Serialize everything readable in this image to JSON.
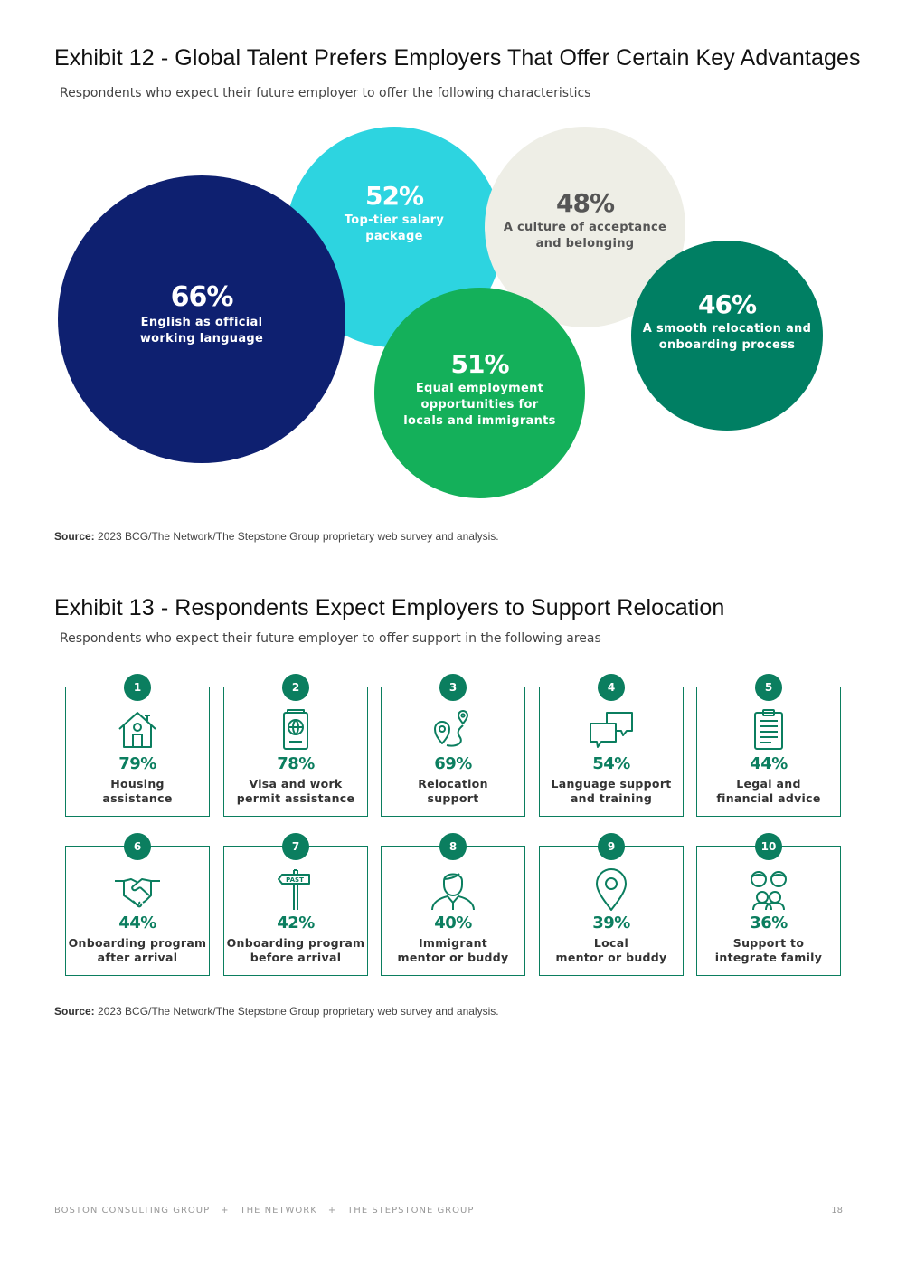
{
  "exhibit12": {
    "title": "Exhibit 12 - Global Talent Prefers Employers That Offer Certain Key Advantages",
    "subtitle": "Respondents who expect their future employer to offer the following characteristics",
    "bubbles": [
      {
        "pct": "66%",
        "label": "English as official\nworking language",
        "value": 66,
        "color": "#0e2070"
      },
      {
        "pct": "52%",
        "label": "Top-tier salary\npackage",
        "value": 52,
        "color": "#2dd4e0"
      },
      {
        "pct": "48%",
        "label": "A culture of acceptance\nand belonging",
        "value": 48,
        "color": "#eeeee6"
      },
      {
        "pct": "51%",
        "label": "Equal employment\nopportunities for\nlocals and immigrants",
        "value": 51,
        "color": "#14b05a"
      },
      {
        "pct": "46%",
        "label": "A smooth relocation and\nonboarding process",
        "value": 46,
        "color": "#007f63"
      }
    ],
    "source_label": "Source:",
    "source_text": " 2023 BCG/The Network/The Stepstone Group proprietary web survey and analysis."
  },
  "exhibit13": {
    "title": "Exhibit 13 - Respondents Expect Employers to Support Relocation",
    "subtitle": "Respondents who expect their future employer to offer support in the following areas",
    "cards": [
      {
        "num": "1",
        "pct": "79%",
        "label": "Housing\nassistance",
        "icon": "house-icon"
      },
      {
        "num": "2",
        "pct": "78%",
        "label": "Visa and work\npermit assistance",
        "icon": "passport-icon"
      },
      {
        "num": "3",
        "pct": "69%",
        "label": "Relocation\nsupport",
        "icon": "route-pins-icon"
      },
      {
        "num": "4",
        "pct": "54%",
        "label": "Language support\nand training",
        "icon": "speech-bubbles-icon"
      },
      {
        "num": "5",
        "pct": "44%",
        "label": "Legal and\nfinancial advice",
        "icon": "clipboard-icon"
      },
      {
        "num": "6",
        "pct": "44%",
        "label": "Onboarding program\nafter arrival",
        "icon": "handshake-icon"
      },
      {
        "num": "7",
        "pct": "42%",
        "label": "Onboarding program\nbefore arrival",
        "icon": "signpost-past-icon",
        "sign_text": "PAST"
      },
      {
        "num": "8",
        "pct": "40%",
        "label": "Immigrant\nmentor or buddy",
        "icon": "person-icon"
      },
      {
        "num": "9",
        "pct": "39%",
        "label": "Local\nmentor or buddy",
        "icon": "location-pin-icon"
      },
      {
        "num": "10",
        "pct": "36%",
        "label": "Support to\nintegrate family",
        "icon": "family-icon"
      }
    ],
    "source_label": "Source:",
    "source_text": " 2023 BCG/The Network/The Stepstone Group proprietary web survey and analysis."
  },
  "footer": {
    "org1": "BOSTON CONSULTING GROUP",
    "sep": "+",
    "org2": "THE NETWORK",
    "org3": "THE STEPSTONE GROUP",
    "page": "18"
  },
  "colors": {
    "accent": "#0b7e5f"
  }
}
